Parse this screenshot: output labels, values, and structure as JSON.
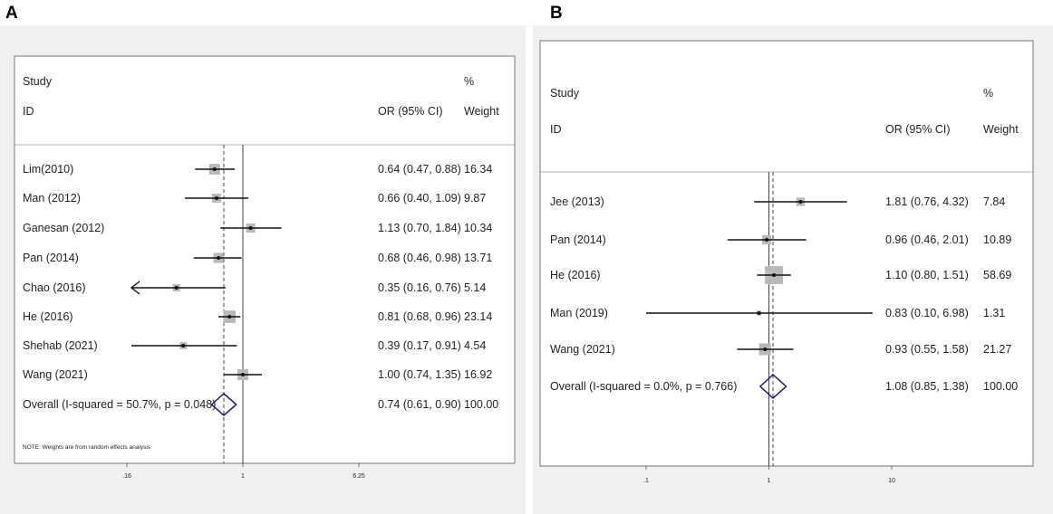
{
  "chart_data": [
    {
      "type": "forest",
      "panel_label": "A",
      "header": {
        "study": "Study",
        "id": "ID",
        "or_col": "OR (95% CI)",
        "pct": "%",
        "weight": "Weight"
      },
      "axis": {
        "scale": "log",
        "ticks": [
          ".16",
          "1",
          "6.25"
        ],
        "null_value": 1,
        "overall_value": 0.74
      },
      "studies": [
        {
          "label": "Lim(2010)",
          "or": 0.64,
          "lo": 0.47,
          "hi": 0.88,
          "ci_text": "0.64 (0.47, 0.88)",
          "weight": 16.34,
          "weight_text": "16.34"
        },
        {
          "label": "Man (2012)",
          "or": 0.66,
          "lo": 0.4,
          "hi": 1.09,
          "ci_text": "0.66 (0.40, 1.09)",
          "weight": 9.87,
          "weight_text": "9.87"
        },
        {
          "label": "Ganesan (2012)",
          "or": 1.13,
          "lo": 0.7,
          "hi": 1.84,
          "ci_text": "1.13 (0.70, 1.84)",
          "weight": 10.34,
          "weight_text": "10.34"
        },
        {
          "label": "Pan (2014)",
          "or": 0.68,
          "lo": 0.46,
          "hi": 0.98,
          "ci_text": "0.68 (0.46, 0.98)",
          "weight": 13.71,
          "weight_text": "13.71"
        },
        {
          "label": "Chao (2016)",
          "or": 0.35,
          "lo": 0.16,
          "hi": 0.76,
          "ci_text": "0.35 (0.16, 0.76)",
          "weight": 5.14,
          "weight_text": "5.14",
          "arrow_left": true
        },
        {
          "label": "He (2016)",
          "or": 0.81,
          "lo": 0.68,
          "hi": 0.96,
          "ci_text": "0.81 (0.68, 0.96)",
          "weight": 23.14,
          "weight_text": "23.14"
        },
        {
          "label": "Shehab (2021)",
          "or": 0.39,
          "lo": 0.17,
          "hi": 0.91,
          "ci_text": "0.39 (0.17, 0.91)",
          "weight": 4.54,
          "weight_text": "4.54"
        },
        {
          "label": "Wang (2021)",
          "or": 1.0,
          "lo": 0.74,
          "hi": 1.35,
          "ci_text": "1.00 (0.74, 1.35)",
          "weight": 16.92,
          "weight_text": "16.92"
        }
      ],
      "overall": {
        "label": "Overall (I-squared = 50.7%, p = 0.048)",
        "or": 0.74,
        "lo": 0.61,
        "hi": 0.9,
        "ci_text": "0.74 (0.61, 0.90)",
        "weight_text": "100.00"
      },
      "note": "NOTE: Weights are from random effects analysis"
    },
    {
      "type": "forest",
      "panel_label": "B",
      "header": {
        "study": "Study",
        "id": "ID",
        "or_col": "OR (95% CI)",
        "pct": "%",
        "weight": "Weight"
      },
      "axis": {
        "scale": "log",
        "ticks": [
          ".1",
          "1",
          "10"
        ],
        "null_value": 1,
        "overall_value": 1.08
      },
      "studies": [
        {
          "label": "Jee (2013)",
          "or": 1.81,
          "lo": 0.76,
          "hi": 4.32,
          "ci_text": "1.81 (0.76, 4.32)",
          "weight": 7.84,
          "weight_text": "7.84"
        },
        {
          "label": "Pan (2014)",
          "or": 0.96,
          "lo": 0.46,
          "hi": 2.01,
          "ci_text": "0.96 (0.46, 2.01)",
          "weight": 10.89,
          "weight_text": "10.89"
        },
        {
          "label": "He (2016)",
          "or": 1.1,
          "lo": 0.8,
          "hi": 1.51,
          "ci_text": "1.10 (0.80, 1.51)",
          "weight": 58.69,
          "weight_text": "58.69"
        },
        {
          "label": "Man (2019)",
          "or": 0.83,
          "lo": 0.1,
          "hi": 6.98,
          "ci_text": "0.83 (0.10, 6.98)",
          "weight": 1.31,
          "weight_text": "1.31"
        },
        {
          "label": "Wang (2021)",
          "or": 0.93,
          "lo": 0.55,
          "hi": 1.58,
          "ci_text": "0.93 (0.55, 1.58)",
          "weight": 21.27,
          "weight_text": "21.27"
        }
      ],
      "overall": {
        "label": "Overall (I-squared = 0.0%, p = 0.766)",
        "or": 1.08,
        "lo": 0.85,
        "hi": 1.38,
        "ci_text": "1.08 (0.85, 1.38)",
        "weight_text": "100.00"
      },
      "note": ""
    }
  ]
}
